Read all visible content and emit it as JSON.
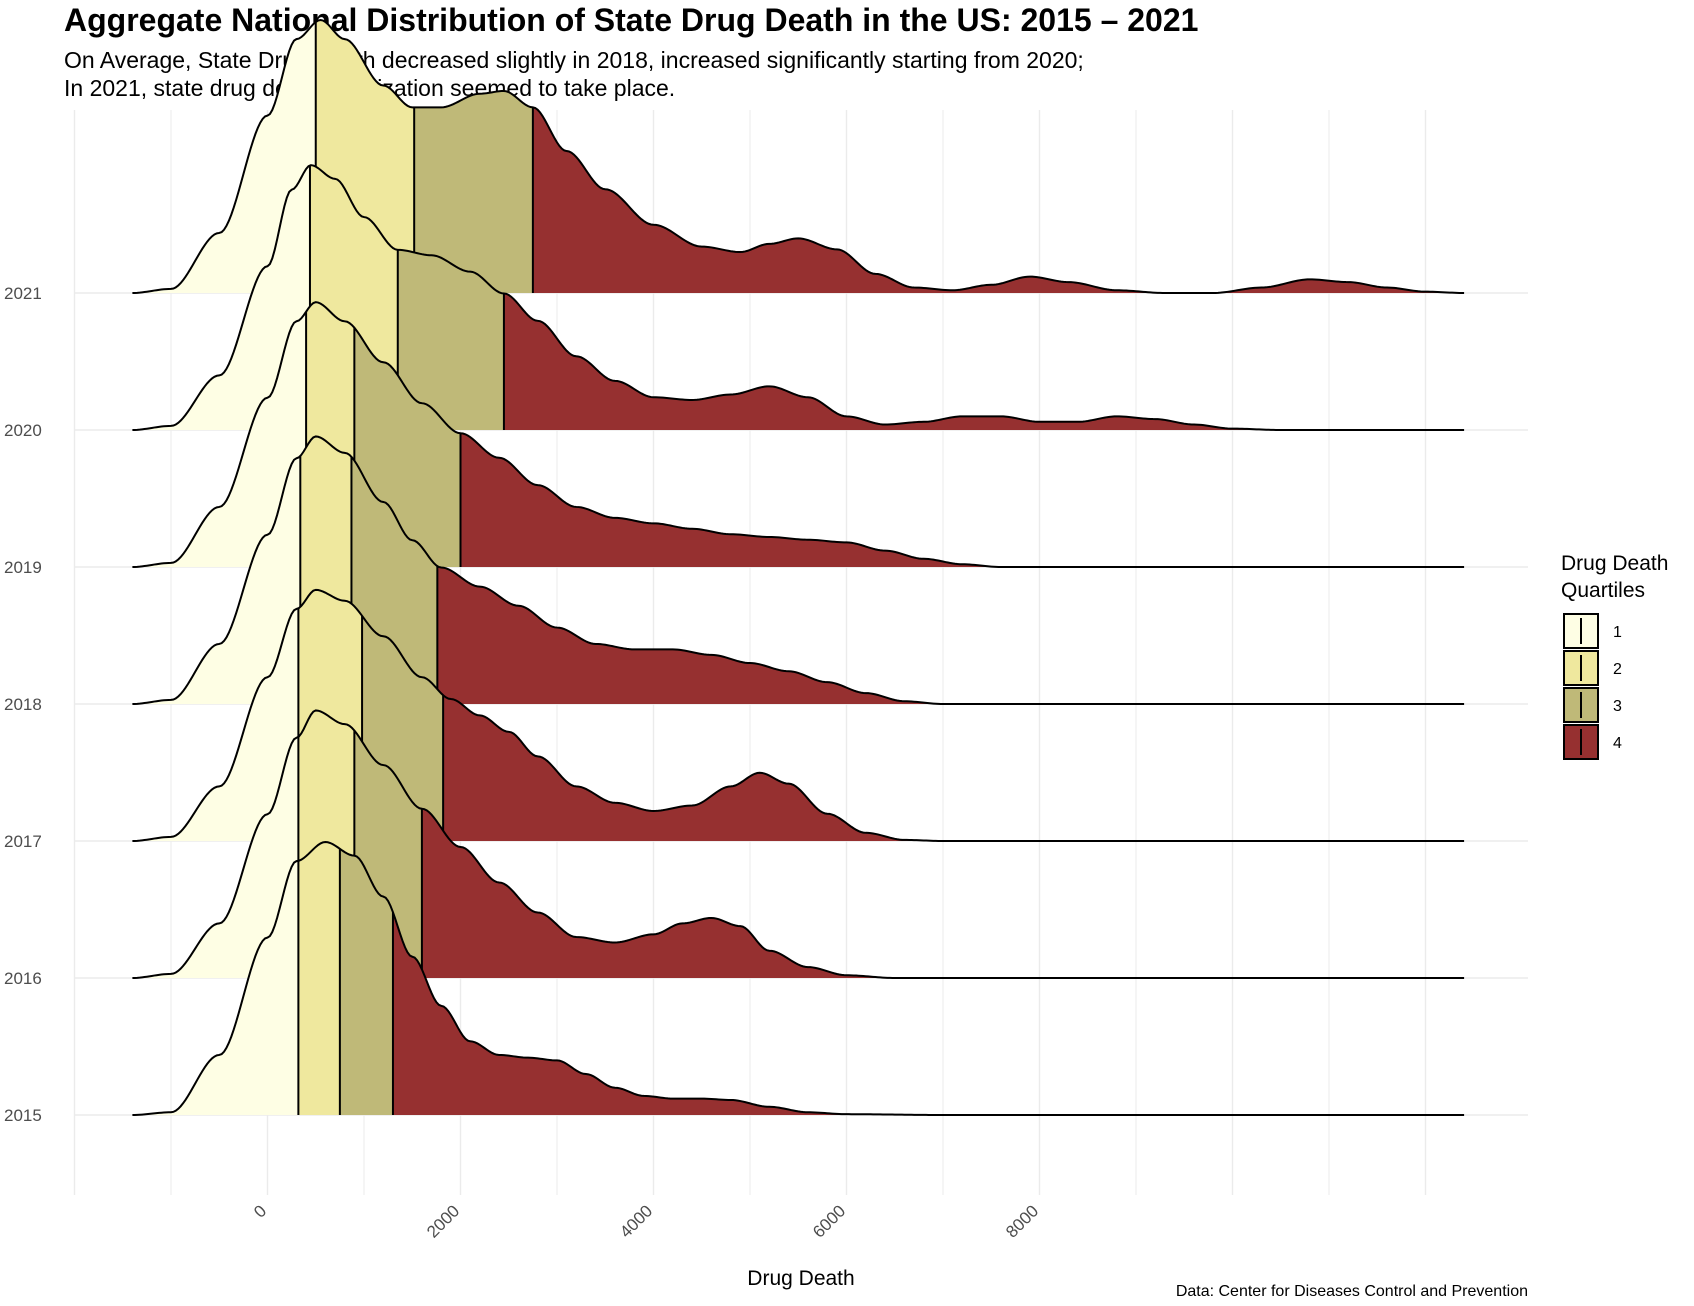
{
  "title": "Aggregate National Distribution of State Drug Death in the US: 2015 – 2021",
  "subtitle_line1": "On Average, State Drug Death decreased slightly in 2018, increased significantly starting from 2020;",
  "subtitle_line2": "In 2021, state drug death polarization seemed to take place.",
  "caption": "Data: Center for Diseases Control and Prevention",
  "colors": {
    "q1": "#fefee4",
    "q2": "#efe89e",
    "q3": "#bfb978",
    "q4": "#963030",
    "grid": "#ebebeb"
  },
  "chart_data": {
    "type": "ridgeline",
    "xlabel": "Drug Death",
    "ylabel": "",
    "x_ticks": [
      0,
      2000,
      4000,
      6000,
      8000
    ],
    "x_range": [
      -1400,
      12400
    ],
    "grid": true,
    "legend": {
      "title_line1": "Drug Death",
      "title_line2": "Quartiles",
      "position": "right",
      "entries": [
        "1",
        "2",
        "3",
        "4"
      ]
    },
    "series": [
      {
        "year": "2015",
        "quartiles": [
          320,
          750,
          1300
        ],
        "density": [
          [
            -1400,
            0
          ],
          [
            -1000,
            0.01
          ],
          [
            -500,
            0.22
          ],
          [
            0,
            0.65
          ],
          [
            300,
            0.93
          ],
          [
            600,
            1.0
          ],
          [
            900,
            0.95
          ],
          [
            1200,
            0.8
          ],
          [
            1500,
            0.58
          ],
          [
            1800,
            0.4
          ],
          [
            2100,
            0.27
          ],
          [
            2400,
            0.22
          ],
          [
            2700,
            0.21
          ],
          [
            3000,
            0.2
          ],
          [
            3300,
            0.15
          ],
          [
            3600,
            0.1
          ],
          [
            3900,
            0.07
          ],
          [
            4200,
            0.06
          ],
          [
            4500,
            0.06
          ],
          [
            4800,
            0.055
          ],
          [
            5200,
            0.03
          ],
          [
            5600,
            0.01
          ],
          [
            6000,
            0.003
          ],
          [
            7000,
            0
          ],
          [
            12400,
            0
          ]
        ]
      },
      {
        "year": "2016",
        "quartiles": [
          320,
          900,
          1600
        ],
        "density": [
          [
            -1400,
            0
          ],
          [
            -1000,
            0.015
          ],
          [
            -500,
            0.2
          ],
          [
            0,
            0.6
          ],
          [
            300,
            0.88
          ],
          [
            500,
            0.98
          ],
          [
            800,
            0.93
          ],
          [
            1200,
            0.78
          ],
          [
            1600,
            0.62
          ],
          [
            2000,
            0.48
          ],
          [
            2400,
            0.35
          ],
          [
            2800,
            0.24
          ],
          [
            3200,
            0.15
          ],
          [
            3600,
            0.13
          ],
          [
            4000,
            0.16
          ],
          [
            4300,
            0.2
          ],
          [
            4600,
            0.22
          ],
          [
            4900,
            0.19
          ],
          [
            5200,
            0.1
          ],
          [
            5600,
            0.04
          ],
          [
            6000,
            0.01
          ],
          [
            6500,
            0
          ],
          [
            12400,
            0
          ]
        ]
      },
      {
        "year": "2017",
        "quartiles": [
          320,
          980,
          1820
        ],
        "density": [
          [
            -1400,
            0
          ],
          [
            -1000,
            0.015
          ],
          [
            -500,
            0.2
          ],
          [
            0,
            0.6
          ],
          [
            300,
            0.85
          ],
          [
            500,
            0.92
          ],
          [
            800,
            0.88
          ],
          [
            1200,
            0.75
          ],
          [
            1600,
            0.6
          ],
          [
            1900,
            0.52
          ],
          [
            2200,
            0.46
          ],
          [
            2500,
            0.4
          ],
          [
            2800,
            0.31
          ],
          [
            3200,
            0.2
          ],
          [
            3600,
            0.14
          ],
          [
            4000,
            0.11
          ],
          [
            4400,
            0.13
          ],
          [
            4800,
            0.2
          ],
          [
            5100,
            0.25
          ],
          [
            5400,
            0.21
          ],
          [
            5800,
            0.1
          ],
          [
            6200,
            0.03
          ],
          [
            6600,
            0.004
          ],
          [
            7000,
            0
          ],
          [
            12400,
            0
          ]
        ]
      },
      {
        "year": "2018",
        "quartiles": [
          340,
          870,
          1760
        ],
        "density": [
          [
            -1400,
            0
          ],
          [
            -1000,
            0.015
          ],
          [
            -500,
            0.22
          ],
          [
            0,
            0.62
          ],
          [
            300,
            0.9
          ],
          [
            500,
            0.98
          ],
          [
            800,
            0.92
          ],
          [
            1200,
            0.74
          ],
          [
            1500,
            0.6
          ],
          [
            1800,
            0.5
          ],
          [
            2200,
            0.43
          ],
          [
            2600,
            0.36
          ],
          [
            3000,
            0.28
          ],
          [
            3400,
            0.22
          ],
          [
            3800,
            0.2
          ],
          [
            4200,
            0.2
          ],
          [
            4600,
            0.18
          ],
          [
            5000,
            0.15
          ],
          [
            5400,
            0.12
          ],
          [
            5800,
            0.08
          ],
          [
            6200,
            0.04
          ],
          [
            6600,
            0.01
          ],
          [
            7000,
            0
          ],
          [
            12400,
            0
          ]
        ]
      },
      {
        "year": "2019",
        "quartiles": [
          400,
          900,
          2000
        ],
        "density": [
          [
            -1400,
            0
          ],
          [
            -1000,
            0.015
          ],
          [
            -500,
            0.22
          ],
          [
            0,
            0.62
          ],
          [
            300,
            0.9
          ],
          [
            500,
            0.97
          ],
          [
            800,
            0.9
          ],
          [
            1200,
            0.75
          ],
          [
            1600,
            0.6
          ],
          [
            2000,
            0.49
          ],
          [
            2400,
            0.4
          ],
          [
            2800,
            0.3
          ],
          [
            3200,
            0.22
          ],
          [
            3600,
            0.18
          ],
          [
            4000,
            0.16
          ],
          [
            4400,
            0.14
          ],
          [
            4800,
            0.12
          ],
          [
            5200,
            0.11
          ],
          [
            5600,
            0.1
          ],
          [
            6000,
            0.09
          ],
          [
            6400,
            0.06
          ],
          [
            6800,
            0.03
          ],
          [
            7200,
            0.01
          ],
          [
            7600,
            0
          ],
          [
            12400,
            0
          ]
        ]
      },
      {
        "year": "2020",
        "quartiles": [
          440,
          1350,
          2450
        ],
        "density": [
          [
            -1400,
            0
          ],
          [
            -1000,
            0.015
          ],
          [
            -500,
            0.2
          ],
          [
            0,
            0.6
          ],
          [
            250,
            0.88
          ],
          [
            450,
            0.97
          ],
          [
            700,
            0.92
          ],
          [
            1000,
            0.78
          ],
          [
            1350,
            0.66
          ],
          [
            1700,
            0.64
          ],
          [
            2100,
            0.58
          ],
          [
            2450,
            0.5
          ],
          [
            2800,
            0.4
          ],
          [
            3200,
            0.27
          ],
          [
            3600,
            0.18
          ],
          [
            4000,
            0.12
          ],
          [
            4400,
            0.11
          ],
          [
            4800,
            0.13
          ],
          [
            5200,
            0.16
          ],
          [
            5600,
            0.12
          ],
          [
            6000,
            0.05
          ],
          [
            6400,
            0.02
          ],
          [
            6800,
            0.03
          ],
          [
            7200,
            0.05
          ],
          [
            7600,
            0.05
          ],
          [
            8000,
            0.03
          ],
          [
            8400,
            0.03
          ],
          [
            8800,
            0.05
          ],
          [
            9200,
            0.04
          ],
          [
            9600,
            0.02
          ],
          [
            10000,
            0.005
          ],
          [
            10500,
            0
          ],
          [
            12400,
            0
          ]
        ]
      },
      {
        "year": "2021",
        "quartiles": [
          500,
          1520,
          2750
        ],
        "density": [
          [
            -1400,
            0
          ],
          [
            -1000,
            0.015
          ],
          [
            -500,
            0.22
          ],
          [
            0,
            0.65
          ],
          [
            300,
            0.93
          ],
          [
            550,
            1.0
          ],
          [
            800,
            0.93
          ],
          [
            1200,
            0.76
          ],
          [
            1500,
            0.68
          ],
          [
            1800,
            0.68
          ],
          [
            2200,
            0.73
          ],
          [
            2450,
            0.74
          ],
          [
            2750,
            0.68
          ],
          [
            3100,
            0.52
          ],
          [
            3500,
            0.38
          ],
          [
            4000,
            0.25
          ],
          [
            4500,
            0.17
          ],
          [
            4900,
            0.15
          ],
          [
            5200,
            0.18
          ],
          [
            5500,
            0.2
          ],
          [
            5900,
            0.16
          ],
          [
            6300,
            0.07
          ],
          [
            6700,
            0.02
          ],
          [
            7100,
            0.01
          ],
          [
            7500,
            0.03
          ],
          [
            7900,
            0.06
          ],
          [
            8300,
            0.04
          ],
          [
            8800,
            0.01
          ],
          [
            9300,
            0
          ],
          [
            9800,
            0
          ],
          [
            10300,
            0.02
          ],
          [
            10800,
            0.05
          ],
          [
            11200,
            0.04
          ],
          [
            11600,
            0.02
          ],
          [
            12000,
            0.005
          ],
          [
            12400,
            0
          ]
        ]
      }
    ]
  }
}
